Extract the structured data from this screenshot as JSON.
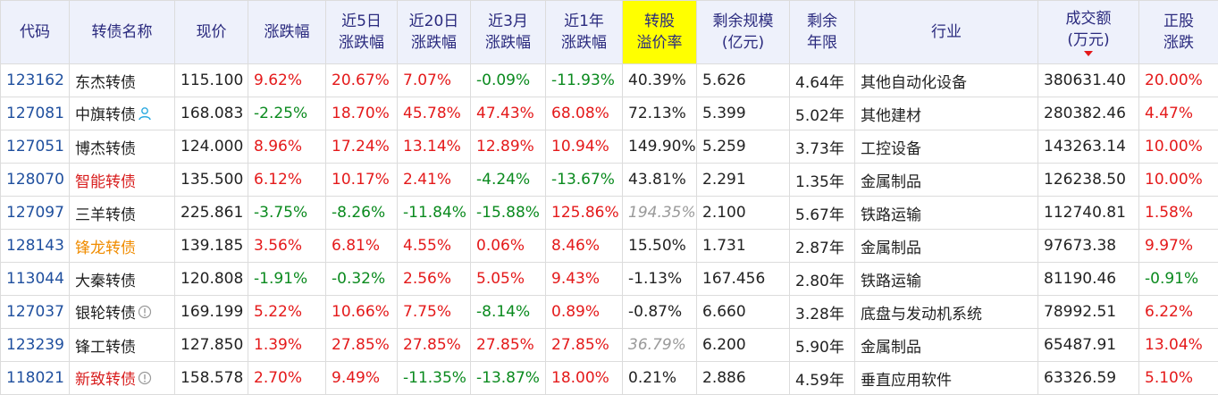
{
  "headers": {
    "code": "代码",
    "name": "转债名称",
    "price": "现价",
    "chg": "涨跌幅",
    "chg5_l1": "近5日",
    "chg5_l2": "涨跌幅",
    "chg20_l1": "近20日",
    "chg20_l2": "涨跌幅",
    "chg3m_l1": "近3月",
    "chg3m_l2": "涨跌幅",
    "chg1y_l1": "近1年",
    "chg1y_l2": "涨跌幅",
    "prem_l1": "转股",
    "prem_l2": "溢价率",
    "scale_l1": "剩余规模",
    "scale_l2": "(亿元)",
    "term_l1": "剩余",
    "term_l2": "年限",
    "industry": "行业",
    "volume_l1": "成交额",
    "volume_l2": "(万元)",
    "stock_l1": "正股",
    "stock_l2": "涨跌"
  },
  "colors": {
    "up": "#e4191a",
    "down": "#0a8a1e",
    "header_bg": "#eef1fb",
    "highlight": "#ffff00",
    "code": "#1f4f9e"
  },
  "rows": [
    {
      "code": "123162",
      "name": "东杰转债",
      "name_style": "name",
      "price": "115.100",
      "chg": "9.62%",
      "chg5": "20.67%",
      "chg20": "7.07%",
      "chg3m": "-0.09%",
      "chg1y": "-11.93%",
      "prem": "40.39%",
      "prem_style": "blk",
      "scale": "5.626",
      "term": "4.64年",
      "industry": "其他自动化设备",
      "volume": "380631.40",
      "stock": "20.00%",
      "icon": ""
    },
    {
      "code": "127081",
      "name": "中旗转债",
      "name_style": "name",
      "price": "168.083",
      "chg": "-2.25%",
      "chg5": "18.70%",
      "chg20": "45.78%",
      "chg3m": "47.43%",
      "chg1y": "68.08%",
      "prem": "72.13%",
      "prem_style": "blk",
      "scale": "5.399",
      "term": "5.02年",
      "industry": "其他建材",
      "volume": "280382.46",
      "stock": "4.47%",
      "icon": "user-icon"
    },
    {
      "code": "127051",
      "name": "博杰转债",
      "name_style": "name",
      "price": "124.000",
      "chg": "8.96%",
      "chg5": "17.24%",
      "chg20": "13.14%",
      "chg3m": "12.89%",
      "chg1y": "10.94%",
      "prem": "149.90%",
      "prem_style": "blk",
      "scale": "5.259",
      "term": "3.73年",
      "industry": "工控设备",
      "volume": "143263.14",
      "stock": "10.00%",
      "icon": ""
    },
    {
      "code": "128070",
      "name": "智能转债",
      "name_style": "nm-red",
      "price": "135.500",
      "chg": "6.12%",
      "chg5": "10.17%",
      "chg20": "2.41%",
      "chg3m": "-4.24%",
      "chg1y": "-13.67%",
      "prem": "43.81%",
      "prem_style": "blk",
      "scale": "2.291",
      "term": "1.35年",
      "industry": "金属制品",
      "volume": "126238.50",
      "stock": "10.00%",
      "icon": ""
    },
    {
      "code": "127097",
      "name": "三羊转债",
      "name_style": "name",
      "price": "225.861",
      "chg": "-3.75%",
      "chg5": "-8.26%",
      "chg20": "-11.84%",
      "chg3m": "-15.88%",
      "chg1y": "125.86%",
      "prem": "194.35%",
      "prem_style": "gray",
      "scale": "2.100",
      "term": "5.67年",
      "industry": "铁路运输",
      "volume": "112740.81",
      "stock": "1.58%",
      "icon": ""
    },
    {
      "code": "128143",
      "name": "锋龙转债",
      "name_style": "nm-orange",
      "price": "139.185",
      "chg": "3.56%",
      "chg5": "6.81%",
      "chg20": "4.55%",
      "chg3m": "0.06%",
      "chg1y": "8.46%",
      "prem": "15.50%",
      "prem_style": "blk",
      "scale": "1.731",
      "term": "2.87年",
      "industry": "金属制品",
      "volume": "97673.38",
      "stock": "9.97%",
      "icon": ""
    },
    {
      "code": "113044",
      "name": "大秦转债",
      "name_style": "name",
      "price": "120.808",
      "chg": "-1.91%",
      "chg5": "-0.32%",
      "chg20": "2.56%",
      "chg3m": "5.05%",
      "chg1y": "9.43%",
      "prem": "-1.13%",
      "prem_style": "blk",
      "scale": "167.456",
      "term": "2.80年",
      "industry": "铁路运输",
      "volume": "81190.46",
      "stock": "-0.91%",
      "icon": ""
    },
    {
      "code": "127037",
      "name": "银轮转债",
      "name_style": "name",
      "price": "169.199",
      "chg": "5.22%",
      "chg5": "10.66%",
      "chg20": "7.75%",
      "chg3m": "-8.14%",
      "chg1y": "0.89%",
      "prem": "-0.87%",
      "prem_style": "blk",
      "scale": "6.660",
      "term": "3.28年",
      "industry": "底盘与发动机系统",
      "volume": "78992.51",
      "stock": "6.22%",
      "icon": "info-icon"
    },
    {
      "code": "123239",
      "name": "锋工转债",
      "name_style": "name",
      "price": "127.850",
      "chg": "1.39%",
      "chg5": "27.85%",
      "chg20": "27.85%",
      "chg3m": "27.85%",
      "chg1y": "27.85%",
      "prem": "36.79%",
      "prem_style": "gray",
      "scale": "6.200",
      "term": "5.90年",
      "industry": "金属制品",
      "volume": "65487.91",
      "stock": "13.04%",
      "icon": ""
    },
    {
      "code": "118021",
      "name": "新致转债",
      "name_style": "nm-red",
      "price": "158.578",
      "chg": "2.70%",
      "chg5": "9.49%",
      "chg20": "-11.35%",
      "chg3m": "-13.87%",
      "chg1y": "18.00%",
      "prem": "0.21%",
      "prem_style": "blk",
      "scale": "2.886",
      "term": "4.59年",
      "industry": "垂直应用软件",
      "volume": "63326.59",
      "stock": "5.10%",
      "icon": "info-icon"
    }
  ]
}
